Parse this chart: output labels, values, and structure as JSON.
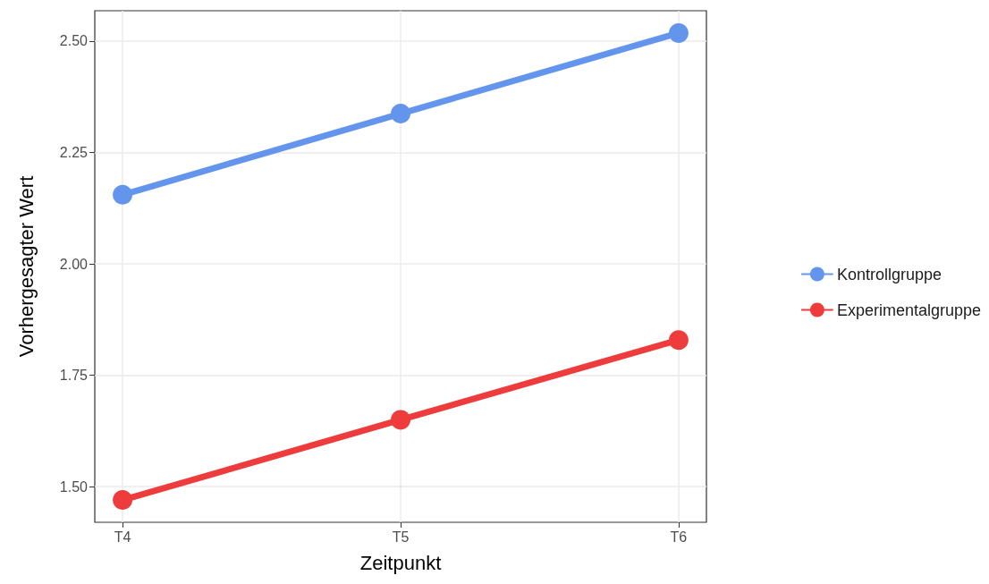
{
  "chart_data": {
    "type": "line",
    "xlabel": "Zeitpunkt",
    "ylabel": "Vorhergesagter Wert",
    "categories": [
      "T4",
      "T5",
      "T6"
    ],
    "series": [
      {
        "name": "Kontrollgruppe",
        "color": "#6495ed",
        "values": [
          2.155,
          2.337,
          2.518
        ]
      },
      {
        "name": "Experimentalgruppe",
        "color": "#ee3b3b",
        "values": [
          1.47,
          1.65,
          1.829
        ]
      }
    ],
    "ylim": [
      1.42,
      2.568
    ],
    "yticks": [
      {
        "value": 1.5,
        "label": "1.50"
      },
      {
        "value": 1.75,
        "label": "1.75"
      },
      {
        "value": 2.0,
        "label": "2.00"
      },
      {
        "value": 2.25,
        "label": "2.25"
      },
      {
        "value": 2.5,
        "label": "2.50"
      }
    ],
    "grid": true,
    "legend": "right",
    "marker": "circle",
    "line_style": "solid"
  }
}
